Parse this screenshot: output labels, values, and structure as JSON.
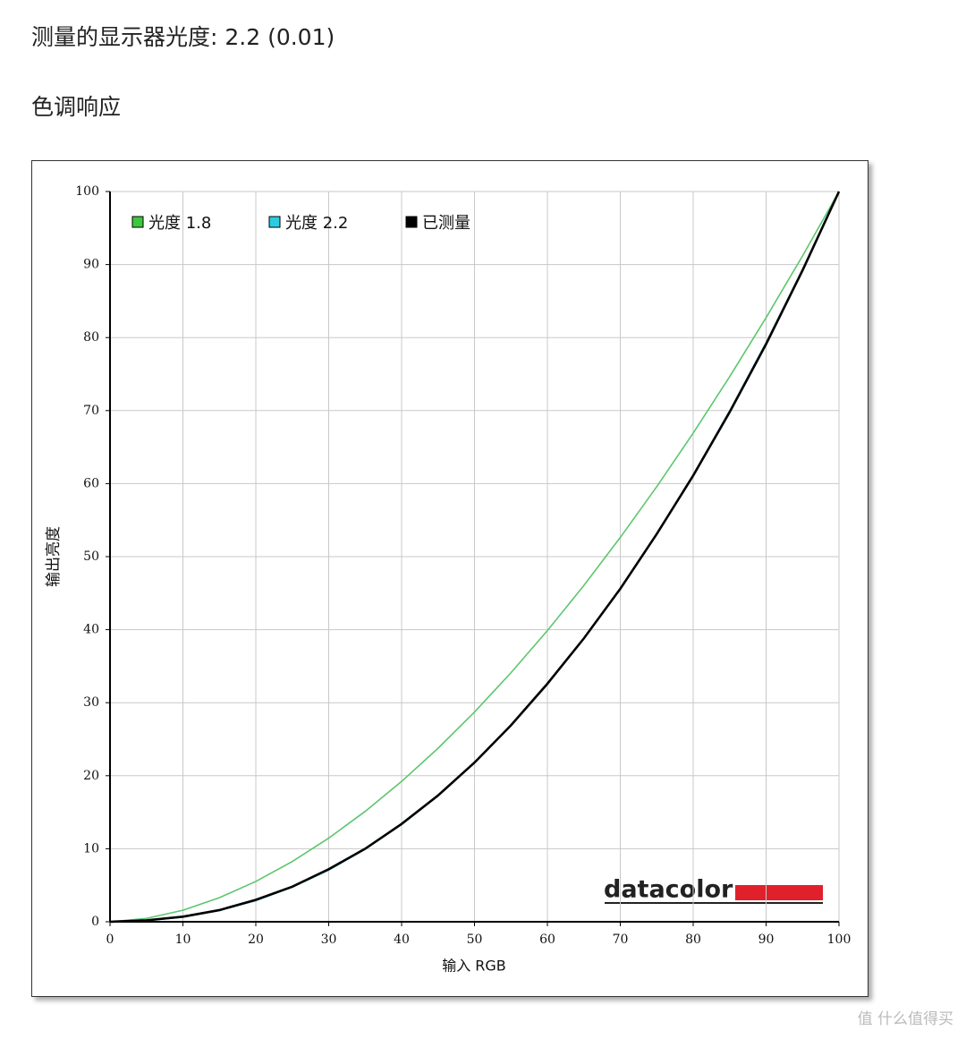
{
  "heading": "测量的显示器光度: 2.2 (0.01)",
  "subheading": "色调响应",
  "logo": "datacolor",
  "watermark": "值 什么值得买",
  "chart_data": {
    "type": "line",
    "x_label": "输入 RGB",
    "y_label": "输出亮度",
    "x": [
      0,
      5,
      10,
      15,
      20,
      25,
      30,
      35,
      40,
      45,
      50,
      55,
      60,
      65,
      70,
      75,
      80,
      85,
      90,
      95,
      100
    ],
    "series": [
      {
        "name": "光度 1.8",
        "color": "#3cc83c",
        "line_color": "#5cc66e",
        "values": [
          0,
          0.46,
          1.58,
          3.29,
          5.52,
          8.25,
          11.45,
          15.11,
          19.22,
          23.76,
          28.72,
          34.1,
          39.87,
          46.05,
          52.63,
          59.58,
          66.92,
          74.64,
          82.73,
          91.18,
          100
        ]
      },
      {
        "name": "光度 2.2",
        "color": "#2ccbe0",
        "line_color": "#1fb3c8",
        "values": [
          0,
          0.14,
          0.63,
          1.54,
          2.9,
          4.74,
          7.07,
          9.93,
          13.32,
          17.26,
          21.76,
          26.84,
          32.5,
          38.76,
          45.62,
          53.11,
          61.21,
          69.94,
          79.31,
          89.33,
          100
        ]
      },
      {
        "name": "已测量",
        "color": "#000000",
        "line_color": "#000000",
        "values": [
          0,
          0.2,
          0.7,
          1.6,
          3.0,
          4.8,
          7.2,
          10.0,
          13.4,
          17.3,
          21.8,
          26.9,
          32.6,
          38.8,
          45.6,
          53.1,
          61.1,
          69.8,
          79.1,
          89.2,
          100
        ]
      }
    ],
    "xlim": [
      0,
      100
    ],
    "ylim": [
      0,
      100
    ],
    "xticks": [
      0,
      10,
      20,
      30,
      40,
      50,
      60,
      70,
      80,
      90,
      100
    ],
    "yticks": [
      0,
      10,
      20,
      30,
      40,
      50,
      60,
      70,
      80,
      90,
      100
    ],
    "grid": true
  }
}
